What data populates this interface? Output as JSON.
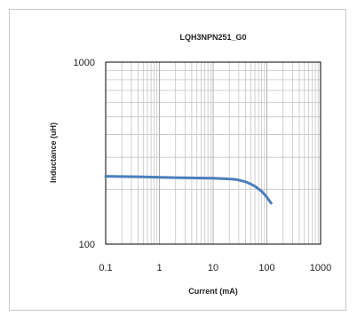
{
  "chart_data": {
    "type": "line",
    "title": "LQH3NPN251_G0",
    "xlabel": "Current (mA)",
    "ylabel": "Inductance (uH)",
    "x_scale": "log",
    "y_scale": "log",
    "xlim": [
      0.1,
      1000
    ],
    "ylim": [
      100,
      1000
    ],
    "x_ticks": [
      "0.1",
      "1",
      "10",
      "100",
      "1000"
    ],
    "y_ticks": [
      "1000",
      "100"
    ],
    "grid": true,
    "legend": "none",
    "series": [
      {
        "color": "#4a7ebb",
        "x": [
          0.1,
          0.2,
          0.5,
          1,
          2,
          5,
          10,
          15,
          20,
          25,
          30,
          40,
          50,
          60,
          70,
          80,
          90,
          100,
          110,
          120
        ],
        "y": [
          236,
          235,
          234,
          233,
          232,
          231,
          230,
          229,
          228,
          227,
          225,
          220,
          214,
          208,
          201,
          195,
          188,
          181,
          174,
          168
        ]
      }
    ]
  }
}
